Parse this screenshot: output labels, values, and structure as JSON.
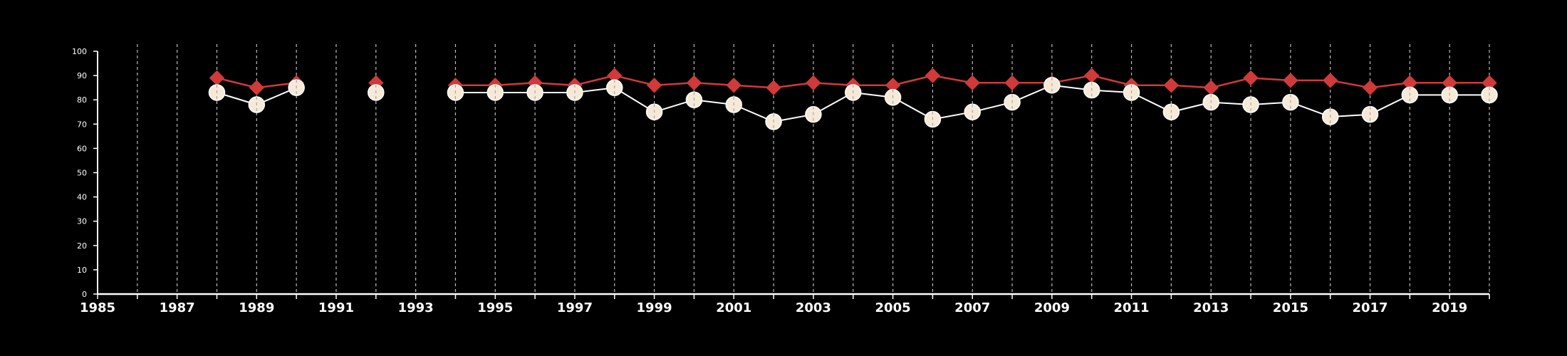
{
  "chart_data": {
    "type": "line",
    "title": "",
    "xlabel": "",
    "ylabel": "",
    "xlim": [
      1985,
      2020
    ],
    "ylim": [
      0,
      100
    ],
    "x_ticks": [
      1985,
      1987,
      1989,
      1991,
      1993,
      1995,
      1997,
      1999,
      2001,
      2003,
      2005,
      2007,
      2009,
      2011,
      2013,
      2015,
      2017,
      2019
    ],
    "y_ticks": [
      0,
      10,
      20,
      30,
      40,
      50,
      60,
      70,
      80,
      90,
      100
    ],
    "vertical_grid": "dashed, every year",
    "legend": "none",
    "series": [
      {
        "color": "#d03a3a",
        "marker": "diamond",
        "points": [
          [
            1988,
            89
          ],
          [
            1989,
            85
          ],
          [
            1990,
            87
          ],
          [
            1992,
            87
          ],
          [
            1994,
            86
          ],
          [
            1995,
            86
          ],
          [
            1996,
            87
          ],
          [
            1997,
            86
          ],
          [
            1998,
            90
          ],
          [
            1999,
            86
          ],
          [
            2000,
            87
          ],
          [
            2001,
            86
          ],
          [
            2002,
            85
          ],
          [
            2003,
            87
          ],
          [
            2004,
            86
          ],
          [
            2005,
            86
          ],
          [
            2006,
            90
          ],
          [
            2007,
            87
          ],
          [
            2008,
            87
          ],
          [
            2009,
            87
          ],
          [
            2010,
            90
          ],
          [
            2011,
            86
          ],
          [
            2012,
            86
          ],
          [
            2013,
            85
          ],
          [
            2014,
            89
          ],
          [
            2015,
            88
          ],
          [
            2016,
            88
          ],
          [
            2017,
            85
          ],
          [
            2018,
            87
          ],
          [
            2019,
            87
          ],
          [
            2020,
            87
          ]
        ]
      },
      {
        "color": "#ffffff",
        "marker_fill": "#f6e9d7",
        "marker": "circle",
        "points": [
          [
            1988,
            83
          ],
          [
            1989,
            78
          ],
          [
            1990,
            85
          ],
          [
            1992,
            83
          ],
          [
            1994,
            83
          ],
          [
            1995,
            83
          ],
          [
            1996,
            83
          ],
          [
            1997,
            83
          ],
          [
            1998,
            85
          ],
          [
            1999,
            75
          ],
          [
            2000,
            80
          ],
          [
            2001,
            78
          ],
          [
            2002,
            71
          ],
          [
            2003,
            74
          ],
          [
            2004,
            83
          ],
          [
            2005,
            81
          ],
          [
            2006,
            72
          ],
          [
            2007,
            75
          ],
          [
            2008,
            79
          ],
          [
            2009,
            86
          ],
          [
            2010,
            84
          ],
          [
            2011,
            83
          ],
          [
            2012,
            75
          ],
          [
            2013,
            79
          ],
          [
            2014,
            78
          ],
          [
            2015,
            79
          ],
          [
            2016,
            73
          ],
          [
            2017,
            74
          ],
          [
            2018,
            82
          ],
          [
            2019,
            82
          ],
          [
            2020,
            82
          ]
        ]
      }
    ]
  }
}
